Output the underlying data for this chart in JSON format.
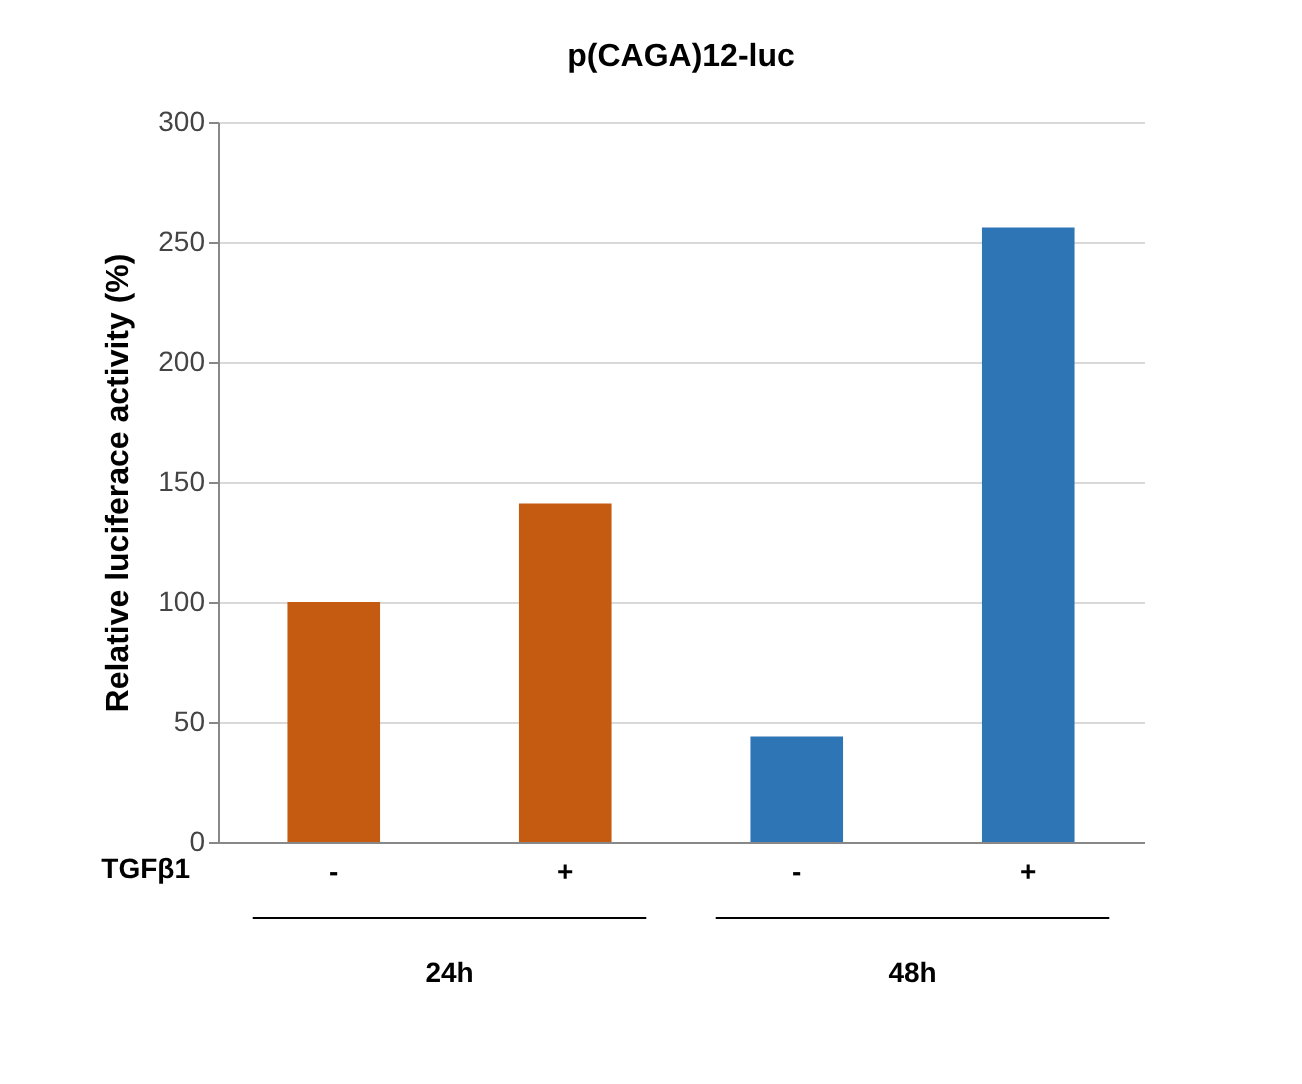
{
  "chart_data": {
    "type": "bar",
    "title": "p(CAGA)12-luc",
    "ylabel": "Relative luciferace activity (%)",
    "categories": [
      "-",
      "+",
      "-",
      "+"
    ],
    "values": [
      100,
      141,
      44,
      256
    ],
    "colors": [
      "#c55a11",
      "#c55a11",
      "#2e75b6",
      "#2e75b6"
    ],
    "ylim": [
      0,
      300
    ],
    "yticks": [
      0,
      50,
      100,
      150,
      200,
      250,
      300
    ],
    "grid": "y",
    "annotations": [
      "TGFβ1",
      "24h",
      "48h"
    ]
  }
}
